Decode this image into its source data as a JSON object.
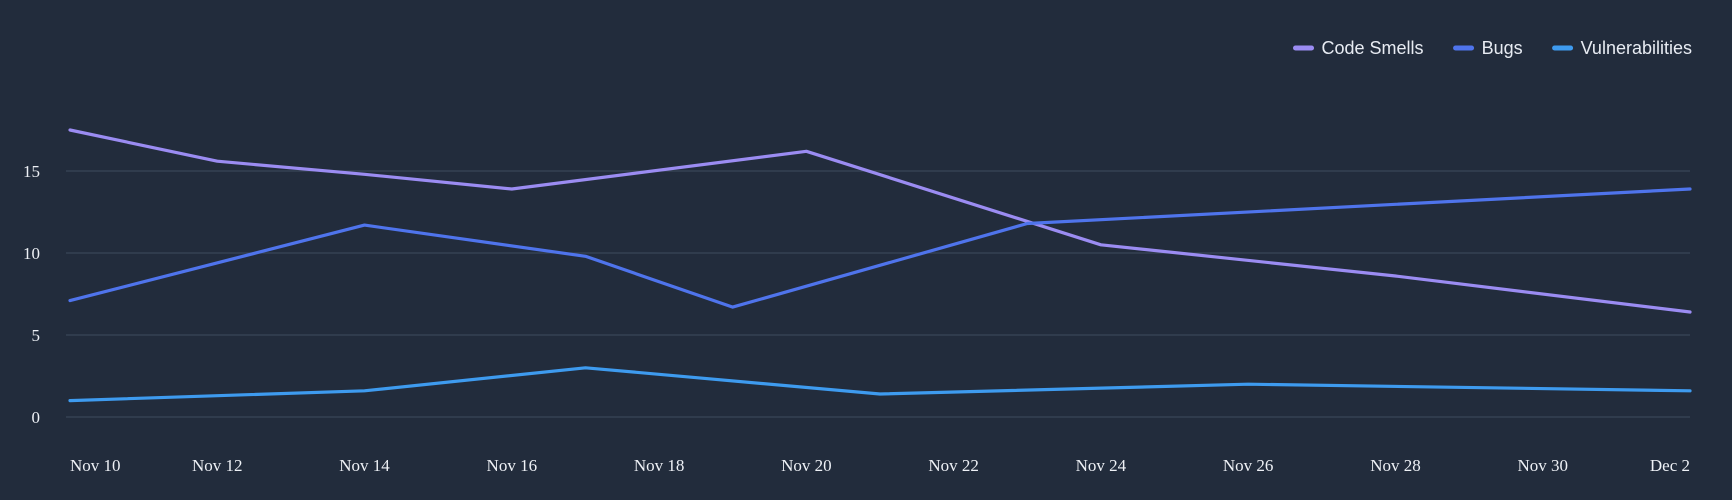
{
  "colors": {
    "background": "#222c3c",
    "grid": "#3a4557",
    "text": "#eef1f6"
  },
  "chart_data": {
    "type": "line",
    "title": "",
    "xlabel": "",
    "ylabel": "",
    "grid": true,
    "legend_position": "top-right",
    "x_ticks": [
      "Nov 10",
      "Nov 12",
      "Nov 14",
      "Nov 16",
      "Nov 18",
      "Nov 20",
      "Nov 22",
      "Nov 24",
      "Nov 26",
      "Nov 28",
      "Nov 30",
      "Dec 2"
    ],
    "y_ticks": [
      "0",
      "5",
      "10",
      "15"
    ],
    "y_tick_values": [
      0,
      5,
      10,
      15
    ],
    "xlim": [
      "2024-11-10",
      "2024-12-02"
    ],
    "ylim": [
      0,
      20
    ],
    "series": [
      {
        "name": "Code Smells",
        "color": "#9b8cf2",
        "points": [
          {
            "x": "2024-11-10",
            "y": 17.5
          },
          {
            "x": "2024-11-12",
            "y": 15.6
          },
          {
            "x": "2024-11-14",
            "y": 14.8
          },
          {
            "x": "2024-11-16",
            "y": 13.9
          },
          {
            "x": "2024-11-20",
            "y": 16.2
          },
          {
            "x": "2024-11-24",
            "y": 10.5
          },
          {
            "x": "2024-11-28",
            "y": 8.6
          },
          {
            "x": "2024-12-02",
            "y": 6.4
          }
        ]
      },
      {
        "name": "Bugs",
        "color": "#4f74ec",
        "points": [
          {
            "x": "2024-11-10",
            "y": 7.1
          },
          {
            "x": "2024-11-14",
            "y": 11.7
          },
          {
            "x": "2024-11-17",
            "y": 9.8
          },
          {
            "x": "2024-11-19",
            "y": 6.7
          },
          {
            "x": "2024-11-23",
            "y": 11.8
          },
          {
            "x": "2024-12-02",
            "y": 13.9
          }
        ]
      },
      {
        "name": "Vulnerabilities",
        "color": "#3e9bef",
        "points": [
          {
            "x": "2024-11-10",
            "y": 1.0
          },
          {
            "x": "2024-11-14",
            "y": 1.6
          },
          {
            "x": "2024-11-17",
            "y": 3.0
          },
          {
            "x": "2024-11-21",
            "y": 1.4
          },
          {
            "x": "2024-11-26",
            "y": 2.0
          },
          {
            "x": "2024-12-02",
            "y": 1.6
          }
        ]
      }
    ]
  }
}
